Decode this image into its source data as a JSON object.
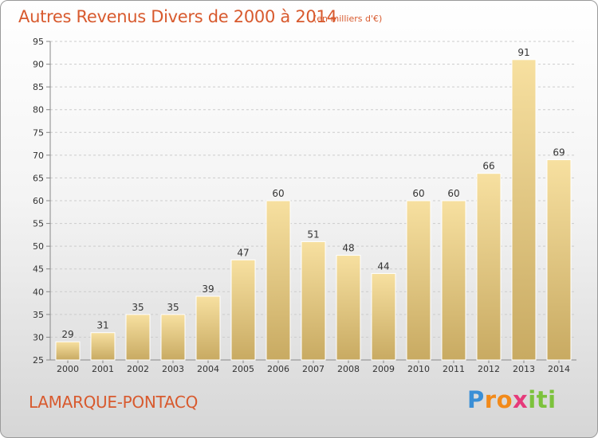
{
  "header": {
    "title": "Autres Revenus Divers de 2000 à 2014",
    "subtitle": "(en milliers d'€)"
  },
  "footer": {
    "commune": "LAMARQUE-PONTACQ",
    "brand": "Proxiti"
  },
  "colors": {
    "title": "#d85a2e",
    "bar_top": "#f7e0a0",
    "bar_bottom": "#c8aa62",
    "grid": "#cccccc"
  },
  "chart_data": {
    "type": "bar",
    "title": "Autres Revenus Divers de 2000 à 2014",
    "subtitle": "(en milliers d'€)",
    "categories": [
      "2000",
      "2001",
      "2002",
      "2003",
      "2004",
      "2005",
      "2006",
      "2007",
      "2008",
      "2009",
      "2010",
      "2011",
      "2012",
      "2013",
      "2014"
    ],
    "values": [
      29,
      31,
      35,
      35,
      39,
      47,
      60,
      51,
      48,
      44,
      60,
      60,
      66,
      91,
      69
    ],
    "ylim": [
      25,
      95
    ],
    "yticks": [
      25,
      30,
      35,
      40,
      45,
      50,
      55,
      60,
      65,
      70,
      75,
      80,
      85,
      90,
      95
    ],
    "grid": "horizontal dashed",
    "legend": "none"
  }
}
